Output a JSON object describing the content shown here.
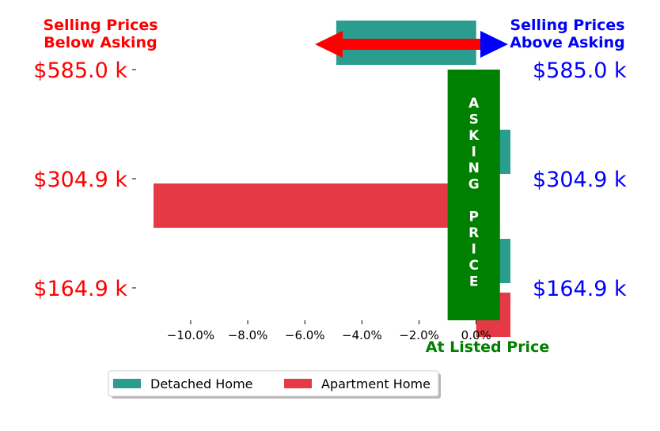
{
  "chart_data": {
    "type": "bar",
    "orientation": "horizontal",
    "categories": [
      "$164.9 k",
      "$304.9 k",
      "$585.0 k"
    ],
    "left_tick_labels": [
      "$585.0 k",
      "$304.9 k",
      "$164.9 k"
    ],
    "right_tick_labels": [
      "$585.0 k",
      "$304.9 k",
      "$164.9 k"
    ],
    "series": [
      {
        "name": "Detached Home",
        "values": [
          1.2,
          1.2,
          -4.9
        ],
        "color": "#2a9d8f"
      },
      {
        "name": "Apartment Home",
        "values": [
          1.2,
          -11.3,
          null
        ],
        "color": "#e63946"
      }
    ],
    "xlim": [
      -11.3,
      1.2
    ],
    "xticks": [
      -10,
      -8,
      -6,
      -4,
      -2,
      0
    ],
    "xtick_labels": [
      "−10.0%",
      "−8.0%",
      "−6.0%",
      "−4.0%",
      "−2.0%",
      "0.0%"
    ],
    "xlabel": "At Listed Price",
    "xlabel_color": "#008000",
    "left_title": "Selling Prices\nBelow Asking",
    "left_color": "#ff0000",
    "right_title": "Selling Prices\nAbove Asking",
    "right_color": "#0000ff",
    "asking_band": {
      "x_range": [
        -1.0,
        1.0
      ],
      "color": "#008000",
      "text": [
        "A",
        "S",
        "K",
        "I",
        "N",
        "G",
        "",
        "P",
        "R",
        "I",
        "C",
        "E"
      ]
    },
    "arrow_colors": {
      "left": "#ff0000",
      "right": "#0000ff"
    },
    "legend": {
      "position": "bottom-left",
      "entries": [
        "Detached Home",
        "Apartment Home"
      ]
    },
    "grid": false
  }
}
